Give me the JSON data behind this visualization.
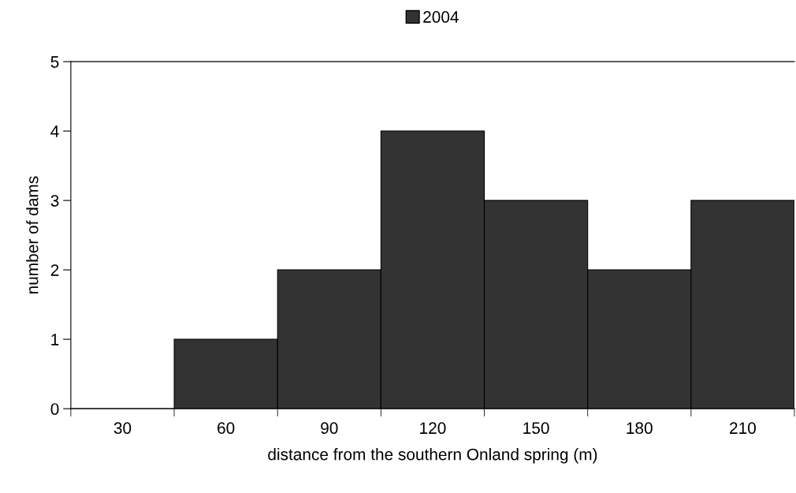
{
  "chart_data": {
    "type": "bar",
    "xlabel": "distance from the southern Onland spring (m)",
    "ylabel": "number of dams",
    "categories": [
      "30",
      "60",
      "90",
      "120",
      "150",
      "180",
      "210"
    ],
    "series": [
      {
        "name": "2004",
        "color": "#333333",
        "values": [
          0,
          1,
          2,
          4,
          3,
          2,
          3
        ]
      }
    ],
    "ylim": [
      0,
      5
    ],
    "yticks": [
      0,
      1,
      2,
      3,
      4,
      5
    ],
    "grid": false,
    "legend": "top"
  }
}
